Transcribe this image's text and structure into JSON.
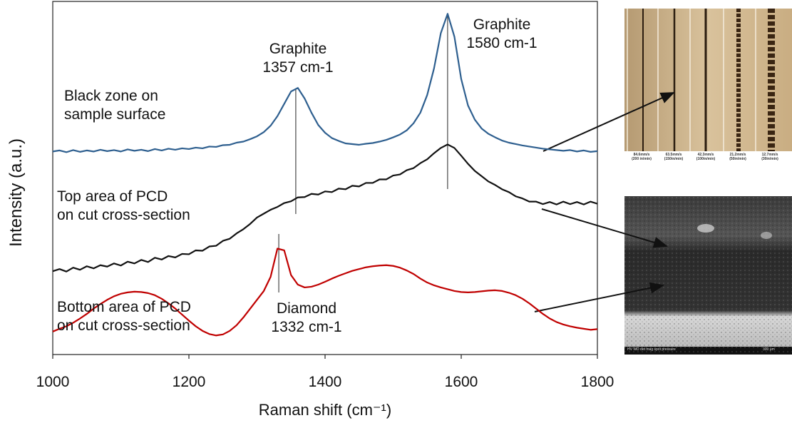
{
  "chart_data": {
    "type": "line",
    "x_label": "Raman shift (cm⁻¹)",
    "y_label": "Intensity (a.u.)",
    "xlim": [
      1000,
      1800
    ],
    "xticks": [
      1000,
      1200,
      1400,
      1600,
      1800
    ],
    "ylim": [
      0,
      100
    ],
    "x": [
      1000,
      1010,
      1020,
      1030,
      1040,
      1050,
      1060,
      1070,
      1080,
      1090,
      1100,
      1110,
      1120,
      1130,
      1140,
      1150,
      1160,
      1170,
      1180,
      1190,
      1200,
      1210,
      1220,
      1230,
      1240,
      1250,
      1260,
      1270,
      1280,
      1290,
      1300,
      1310,
      1320,
      1330,
      1340,
      1350,
      1360,
      1370,
      1380,
      1390,
      1400,
      1410,
      1420,
      1430,
      1440,
      1450,
      1460,
      1470,
      1480,
      1490,
      1500,
      1510,
      1520,
      1530,
      1540,
      1550,
      1560,
      1570,
      1580,
      1590,
      1600,
      1610,
      1620,
      1630,
      1640,
      1650,
      1660,
      1670,
      1680,
      1690,
      1700,
      1710,
      1720,
      1730,
      1740,
      1750,
      1760,
      1770,
      1780,
      1790,
      1800
    ],
    "series": [
      {
        "name": "Black zone on\nsample surface",
        "color": "#2e5f8f",
        "values": [
          57.5,
          57.8,
          57.3,
          57.9,
          57.4,
          57.8,
          57.5,
          58.0,
          57.6,
          57.9,
          57.5,
          58.1,
          57.7,
          58.0,
          57.6,
          58.2,
          57.8,
          58.3,
          58.0,
          58.4,
          58.2,
          58.6,
          58.4,
          58.9,
          58.8,
          59.3,
          59.4,
          60.0,
          60.3,
          61.0,
          61.8,
          63.0,
          64.8,
          67.5,
          71.0,
          74.5,
          75.5,
          72.5,
          68.5,
          65.0,
          62.8,
          61.3,
          60.5,
          59.8,
          59.6,
          59.4,
          59.7,
          59.9,
          60.3,
          60.8,
          61.5,
          62.3,
          63.5,
          65.5,
          68.5,
          73.5,
          81.0,
          91.0,
          96.5,
          90.0,
          78.0,
          70.5,
          66.5,
          64.0,
          62.5,
          61.5,
          60.6,
          60.0,
          59.6,
          59.2,
          58.9,
          58.6,
          58.3,
          58.1,
          57.9,
          57.7,
          57.9,
          57.5,
          57.8,
          57.4,
          57.6
        ]
      },
      {
        "name": "Top area of PCD\non cut cross-section",
        "color": "#111111",
        "values": [
          23.6,
          24.2,
          23.5,
          24.6,
          24.0,
          25.0,
          24.4,
          25.3,
          24.9,
          25.8,
          25.2,
          26.3,
          25.8,
          26.8,
          26.2,
          27.4,
          26.9,
          27.9,
          27.5,
          28.5,
          28.4,
          29.5,
          29.4,
          30.6,
          30.8,
          32.2,
          32.8,
          34.3,
          35.5,
          37.0,
          38.8,
          39.9,
          41.0,
          41.8,
          42.9,
          43.4,
          44.5,
          44.6,
          45.5,
          45.3,
          46.2,
          46.0,
          47.0,
          46.8,
          47.8,
          47.6,
          48.6,
          48.6,
          49.6,
          49.6,
          50.7,
          51.0,
          52.2,
          52.8,
          54.2,
          55.3,
          57.0,
          58.5,
          59.5,
          58.5,
          56.3,
          54.0,
          52.0,
          50.5,
          49.0,
          48.0,
          46.8,
          46.0,
          44.8,
          44.2,
          43.3,
          43.3,
          42.6,
          43.2,
          42.5,
          43.3,
          42.6,
          43.2,
          42.5,
          43.3,
          42.7
        ]
      },
      {
        "name": "Bottom area of PCD\non cut cross-section",
        "color": "#c00000",
        "values": [
          6.5,
          7.3,
          8.0,
          9.0,
          10.2,
          11.5,
          13.0,
          14.3,
          15.5,
          16.5,
          17.2,
          17.6,
          17.8,
          17.7,
          17.4,
          16.8,
          15.8,
          14.5,
          13.0,
          11.3,
          9.6,
          8.0,
          6.7,
          5.8,
          5.4,
          5.7,
          6.7,
          8.3,
          10.5,
          13.0,
          15.5,
          18.0,
          22.0,
          30.0,
          29.5,
          22.5,
          19.8,
          19.0,
          19.2,
          19.8,
          20.6,
          21.5,
          22.3,
          23.0,
          23.7,
          24.2,
          24.7,
          25.0,
          25.2,
          25.3,
          25.1,
          24.6,
          23.8,
          22.8,
          21.5,
          20.4,
          19.6,
          19.0,
          18.5,
          18.0,
          17.7,
          17.6,
          17.7,
          17.9,
          18.1,
          18.2,
          18.0,
          17.5,
          16.8,
          15.8,
          14.5,
          13.0,
          11.5,
          10.2,
          9.2,
          8.5,
          8.0,
          7.6,
          7.3,
          7.0,
          7.2
        ]
      }
    ],
    "annotations": [
      {
        "text": "Graphite\n1357 cm-1",
        "x": 1357
      },
      {
        "text": "Graphite\n1580 cm-1",
        "x": 1580
      },
      {
        "text": "Diamond\n1332 cm-1",
        "x": 1332
      }
    ]
  },
  "insets": {
    "photo_captions": [
      "84.6mm/s\n(200 in/min)",
      "63.5mm/s\n(150in/min)",
      "42.3mm/s\n(100in/min)",
      "21.2mm/s\n(50in/min)",
      "12.7mm/s\n(30in/min)"
    ],
    "sem_footer": "HV    WD    det   mag   spot   pressure",
    "sem_scale": "300 μm"
  }
}
